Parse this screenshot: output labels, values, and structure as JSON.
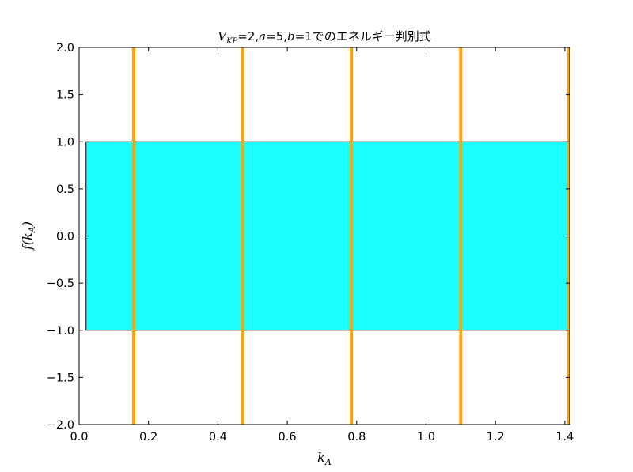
{
  "chart_data": {
    "type": "line",
    "title": {
      "v_symbol": "V",
      "v_subscript": "KP",
      "part1": "=2,",
      "a_symbol": "a",
      "part2": "=5,",
      "b_symbol": "b",
      "part3": "=1でのエネルギー判別式"
    },
    "xlabel": {
      "main": "k",
      "sub": "A"
    },
    "ylabel": {
      "prefix": "f(",
      "main": "k",
      "sub": "A",
      "suffix": ")"
    },
    "xlim": [
      0.0,
      1.414
    ],
    "ylim": [
      -2.0,
      2.0
    ],
    "xticks": [
      0.0,
      0.2,
      0.4,
      0.6,
      0.8,
      1.0,
      1.2,
      1.4
    ],
    "xtick_labels": [
      "0.0",
      "0.2",
      "0.4",
      "0.6",
      "0.8",
      "1.0",
      "1.2",
      "1.4"
    ],
    "yticks": [
      2.0,
      1.5,
      1.0,
      0.5,
      0.0,
      -0.5,
      -1.0,
      -1.5,
      -2.0
    ],
    "ytick_labels": [
      "2.0",
      "1.5",
      "1.0",
      "0.5",
      "0.0",
      "−0.5",
      "−1.0",
      "−1.5",
      "−2.0"
    ],
    "band": {
      "x_start": 0.02,
      "x_end": 1.414,
      "y_min": -1.0,
      "y_max": 1.0,
      "color": "#1cffff"
    },
    "series": [
      {
        "x": [
          0.157,
          0.157
        ],
        "y": [
          -2.0,
          2.0
        ],
        "color": "#ffa500"
      },
      {
        "x": [
          0.471,
          0.471
        ],
        "y": [
          -2.0,
          2.0
        ],
        "color": "#ffa500"
      },
      {
        "x": [
          0.785,
          0.785
        ],
        "y": [
          -2.0,
          2.0
        ],
        "color": "#ffa500"
      },
      {
        "x": [
          1.1,
          1.1
        ],
        "y": [
          -2.0,
          2.0
        ],
        "color": "#ffa500"
      },
      {
        "x": [
          1.411,
          1.411
        ],
        "y": [
          -2.0,
          2.0
        ],
        "color": "#ffa500"
      }
    ]
  }
}
